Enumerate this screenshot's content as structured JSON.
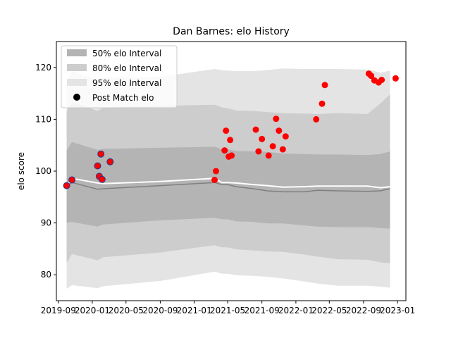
{
  "chart_data": {
    "type": "line",
    "title": "Dan Barnes: elo History",
    "xlabel": "",
    "ylabel": "elo score",
    "ylim": [
      75,
      125
    ],
    "xlim": [
      "2019-08-25",
      "2023-01-31"
    ],
    "x_tick_labels": [
      "2019-09",
      "2020-01",
      "2020-05",
      "2020-09",
      "2021-01",
      "2021-05",
      "2021-09",
      "2022-01",
      "2022-05",
      "2022-09",
      "2023-01"
    ],
    "x_ticks": [
      "2019-09-01",
      "2020-01-01",
      "2020-05-01",
      "2020-09-01",
      "2021-01-01",
      "2021-05-01",
      "2021-09-01",
      "2022-01-01",
      "2022-05-01",
      "2022-09-01",
      "2023-01-01"
    ],
    "y_ticks": [
      80,
      90,
      100,
      110,
      120
    ],
    "grid": false,
    "legend_position": "top-left",
    "legend": [
      "50% elo Interval",
      "80% elo Interval",
      "95% elo Interval",
      "Post Match elo"
    ],
    "colors": {
      "band50": "#b4b4b4",
      "band80": "#cdcdcd",
      "band95": "#e4e4e4",
      "median_line": "#7f7f7f",
      "mean_line": "#ffffff",
      "points": "#ff0000",
      "point_edge": "#1f3a93"
    },
    "x": [
      "2019-10-01",
      "2019-10-20",
      "2020-01-20",
      "2020-02-10",
      "2020-09-01",
      "2021-03-15",
      "2021-04-10",
      "2021-05-01",
      "2021-06-01",
      "2021-08-01",
      "2021-09-20",
      "2021-11-15",
      "2022-02-01",
      "2022-03-20",
      "2022-06-01",
      "2022-09-15",
      "2022-11-01",
      "2022-12-05"
    ],
    "series": [
      {
        "values": [
          77.3,
          78.0,
          77.4,
          77.8,
          78.8,
          80.6,
          80.2,
          80.2,
          79.9,
          79.8,
          79.6,
          79.3,
          78.7,
          78.3,
          77.9,
          77.9,
          77.7,
          77.5
        ]
      },
      {
        "values": [
          82.3,
          84.0,
          82.8,
          83.4,
          84.3,
          85.7,
          85.3,
          85.3,
          84.9,
          84.7,
          84.5,
          84.4,
          83.9,
          83.5,
          83.0,
          82.9,
          82.4,
          82.2
        ]
      },
      {
        "values": [
          90.0,
          90.2,
          89.3,
          89.7,
          90.5,
          91.0,
          90.7,
          90.7,
          90.3,
          90.2,
          89.9,
          89.9,
          89.5,
          89.3,
          89.2,
          89.2,
          89.0,
          88.9
        ]
      },
      {
        "values": [
          97.1,
          97.8,
          96.5,
          96.6,
          97.2,
          97.8,
          97.4,
          97.4,
          97.0,
          96.6,
          96.2,
          96.0,
          96.0,
          96.3,
          96.2,
          96.1,
          96.2,
          96.6
        ]
      },
      {
        "values": [
          97.1,
          98.6,
          97.7,
          97.6,
          98.0,
          98.6,
          97.8,
          97.8,
          97.7,
          97.4,
          97.2,
          96.9,
          97.0,
          97.1,
          97.1,
          97.1,
          96.8,
          97.0
        ]
      },
      {
        "values": [
          104.0,
          105.6,
          104.1,
          104.3,
          104.5,
          104.7,
          104.2,
          104.2,
          103.9,
          103.8,
          103.7,
          103.4,
          103.3,
          103.2,
          103.2,
          103.1,
          103.3,
          103.8
        ]
      },
      {
        "values": [
          111.6,
          113.4,
          111.6,
          112.3,
          112.6,
          112.8,
          112.3,
          112.1,
          111.7,
          111.6,
          111.4,
          111.2,
          111.1,
          111.0,
          111.2,
          111.0,
          113.1,
          114.8
        ]
      },
      {
        "values": [
          117.0,
          119.3,
          117.6,
          118.0,
          118.2,
          119.7,
          119.5,
          119.4,
          119.3,
          119.3,
          119.5,
          119.8,
          119.7,
          119.7,
          119.7,
          119.6,
          119.0,
          119.4
        ]
      }
    ],
    "points": [
      {
        "x": "2019-10-01",
        "y": 97.2,
        "outlined": true
      },
      {
        "x": "2019-10-20",
        "y": 98.3,
        "outlined": true
      },
      {
        "x": "2020-01-20",
        "y": 101.0,
        "outlined": true
      },
      {
        "x": "2020-01-26",
        "y": 99.0,
        "outlined": true
      },
      {
        "x": "2020-02-01",
        "y": 103.3,
        "outlined": true
      },
      {
        "x": "2020-02-05",
        "y": 98.4,
        "outlined": true
      },
      {
        "x": "2020-03-05",
        "y": 101.8,
        "outlined": true
      },
      {
        "x": "2021-03-15",
        "y": 98.3,
        "outlined": false
      },
      {
        "x": "2021-03-20",
        "y": 100.0,
        "outlined": false
      },
      {
        "x": "2021-04-20",
        "y": 104.0,
        "outlined": false
      },
      {
        "x": "2021-04-25",
        "y": 107.8,
        "outlined": false
      },
      {
        "x": "2021-05-05",
        "y": 102.8,
        "outlined": false
      },
      {
        "x": "2021-05-10",
        "y": 106.0,
        "outlined": false
      },
      {
        "x": "2021-05-15",
        "y": 103.0,
        "outlined": false
      },
      {
        "x": "2021-08-10",
        "y": 108.0,
        "outlined": false
      },
      {
        "x": "2021-08-20",
        "y": 103.8,
        "outlined": false
      },
      {
        "x": "2021-09-01",
        "y": 106.2,
        "outlined": false
      },
      {
        "x": "2021-09-25",
        "y": 103.0,
        "outlined": false
      },
      {
        "x": "2021-10-10",
        "y": 104.8,
        "outlined": false
      },
      {
        "x": "2021-10-22",
        "y": 110.1,
        "outlined": false
      },
      {
        "x": "2021-11-01",
        "y": 107.8,
        "outlined": false
      },
      {
        "x": "2021-11-15",
        "y": 104.2,
        "outlined": false
      },
      {
        "x": "2021-11-25",
        "y": 106.7,
        "outlined": false
      },
      {
        "x": "2022-03-15",
        "y": 110.0,
        "outlined": false
      },
      {
        "x": "2022-04-05",
        "y": 113.0,
        "outlined": false
      },
      {
        "x": "2022-04-15",
        "y": 116.6,
        "outlined": false
      },
      {
        "x": "2022-09-20",
        "y": 118.8,
        "outlined": false
      },
      {
        "x": "2022-09-28",
        "y": 118.4,
        "outlined": false
      },
      {
        "x": "2022-10-10",
        "y": 117.5,
        "outlined": false
      },
      {
        "x": "2022-10-25",
        "y": 117.1,
        "outlined": false
      },
      {
        "x": "2022-11-05",
        "y": 117.6,
        "outlined": false
      },
      {
        "x": "2022-12-25",
        "y": 117.9,
        "outlined": false
      }
    ]
  }
}
